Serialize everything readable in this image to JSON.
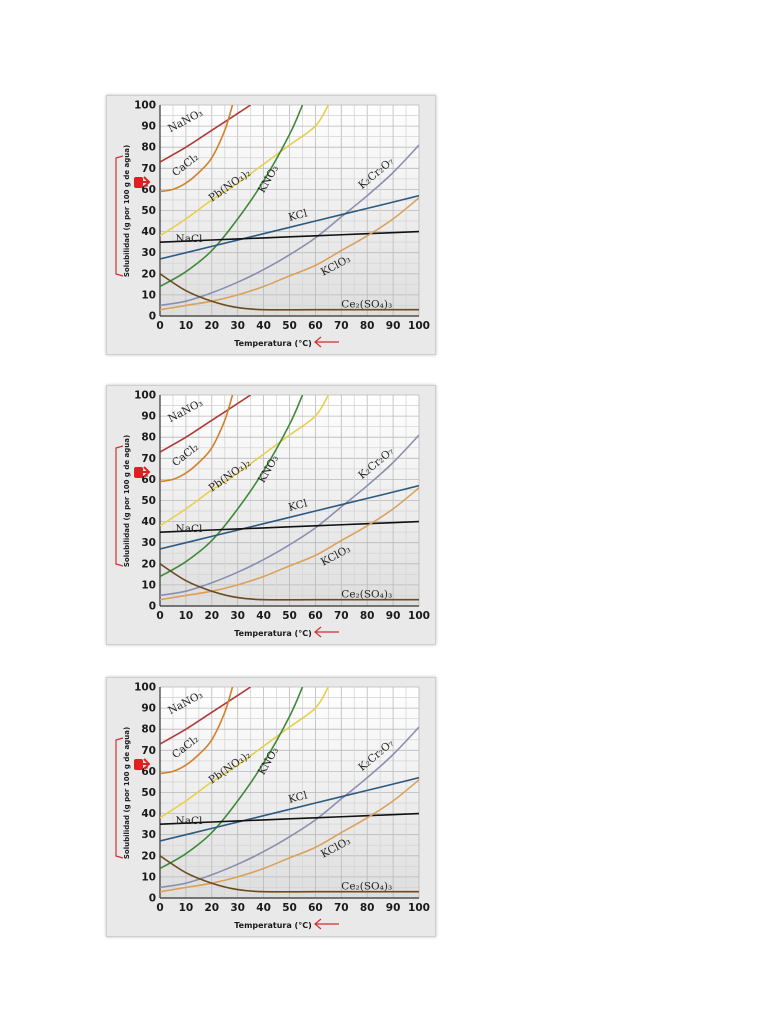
{
  "chart_data": [
    {
      "type": "line",
      "xlabel": "Temperatura (°C)",
      "ylabel": "Solubilidad (g por 100 g de agua)",
      "xlim": [
        0,
        100
      ],
      "ylim": [
        0,
        100
      ],
      "xticks": [
        "0",
        "10",
        "20",
        "30",
        "40",
        "50",
        "60",
        "70",
        "80",
        "90",
        "100"
      ],
      "yticks": [
        "0",
        "10",
        "20",
        "30",
        "40",
        "50",
        "60",
        "70",
        "80",
        "90",
        "100"
      ],
      "grid": true,
      "colors": {
        "NaNO3": "#b03a3a",
        "CaCl2": "#d0822c",
        "Pb(NO3)2": "#e8cf4a",
        "KNO3": "#3f8a3a",
        "K2Cr2O7": "#8a8fb0",
        "KCl": "#2d5a80",
        "NaCl": "#111111",
        "KClO3": "#d9a25a",
        "Ce2(SO4)3": "#6b4a1e"
      },
      "series": [
        {
          "name": "NaNO3",
          "label_text": "NaNO₃",
          "x": [
            0,
            10,
            20,
            30,
            35
          ],
          "y": [
            73,
            80,
            88,
            96,
            100
          ]
        },
        {
          "name": "CaCl2",
          "label_text": "CaCl₂",
          "x": [
            0,
            5,
            10,
            15,
            20,
            25,
            28
          ],
          "y": [
            59,
            60,
            63,
            68,
            75,
            88,
            100
          ]
        },
        {
          "name": "Pb(NO3)2",
          "label_text": "Pb(NO₃)₂",
          "x": [
            0,
            10,
            20,
            30,
            40,
            50,
            60,
            65
          ],
          "y": [
            38,
            46,
            55,
            63,
            72,
            81,
            90,
            100
          ]
        },
        {
          "name": "KNO3",
          "label_text": "KNO₃",
          "x": [
            0,
            10,
            20,
            30,
            40,
            50,
            55
          ],
          "y": [
            14,
            21,
            31,
            46,
            64,
            86,
            100
          ]
        },
        {
          "name": "K2Cr2O7",
          "label_text": "K₂Cr₂O₇",
          "x": [
            0,
            10,
            20,
            30,
            40,
            50,
            60,
            70,
            80,
            90,
            100
          ],
          "y": [
            5,
            7,
            11,
            16,
            22,
            29,
            37,
            47,
            57,
            68,
            81
          ]
        },
        {
          "name": "KCl",
          "label_text": "KCl",
          "x": [
            0,
            20,
            40,
            60,
            80,
            100
          ],
          "y": [
            27,
            33,
            39,
            45,
            51,
            57
          ]
        },
        {
          "name": "NaCl",
          "label_text": "NaCl",
          "x": [
            0,
            20,
            40,
            60,
            80,
            100
          ],
          "y": [
            35,
            36,
            37,
            38,
            39,
            40
          ]
        },
        {
          "name": "KClO3",
          "label_text": "KClO₃",
          "x": [
            0,
            10,
            20,
            30,
            40,
            50,
            60,
            70,
            80,
            90,
            100
          ],
          "y": [
            3,
            5,
            7,
            10,
            14,
            19,
            24,
            31,
            38,
            46,
            56
          ]
        },
        {
          "name": "Ce2(SO4)3",
          "label_text": "Ce₂(SO₄)₃",
          "x": [
            0,
            10,
            20,
            30,
            40,
            60,
            80,
            100
          ],
          "y": [
            20,
            12,
            7,
            4,
            3,
            3,
            3,
            3
          ]
        }
      ],
      "annotations": [
        {
          "text": "NaNO₃",
          "x": 4,
          "y": 87,
          "rotate": -28
        },
        {
          "text": "CaCl₂",
          "x": 6,
          "y": 66,
          "rotate": -38
        },
        {
          "text": "Pb(NO₃)₂",
          "x": 20,
          "y": 54,
          "rotate": -35
        },
        {
          "text": "KNO₃",
          "x": 40,
          "y": 58,
          "rotate": -60
        },
        {
          "text": "K₂Cr₂O₇",
          "x": 78,
          "y": 60,
          "rotate": -40
        },
        {
          "text": "KCl",
          "x": 50,
          "y": 45,
          "rotate": -15
        },
        {
          "text": "NaCl",
          "x": 6,
          "y": 35,
          "rotate": 0
        },
        {
          "text": "KClO₃",
          "x": 63,
          "y": 19,
          "rotate": -28
        },
        {
          "text": "Ce₂(SO₄)₃",
          "x": 70,
          "y": 4,
          "rotate": 0
        }
      ]
    }
  ],
  "copies": [
    {
      "id": "top"
    },
    {
      "id": "middle"
    },
    {
      "id": "bottom"
    }
  ]
}
